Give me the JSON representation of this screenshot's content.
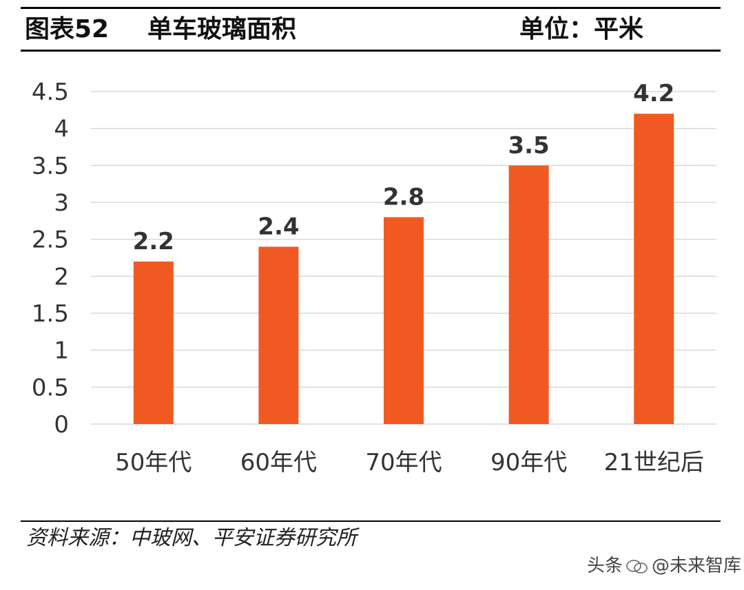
{
  "header": {
    "figure_number": "图表52",
    "title": "单车玻璃面积",
    "unit": "单位：平米"
  },
  "source": "资料来源：中玻网、平安证券研究所",
  "watermark": {
    "left_text": "头条",
    "right_text": "@未来智库",
    "icon": "wechat-icon"
  },
  "colors": {
    "bar": "#f05a22",
    "grid": "#d9d9d9",
    "rule": "#000000"
  },
  "chart_data": {
    "type": "bar",
    "categories": [
      "50年代",
      "60年代",
      "70年代",
      "90年代",
      "21世纪后"
    ],
    "values": [
      2.2,
      2.4,
      2.8,
      3.5,
      4.2
    ],
    "data_labels": [
      "2.2",
      "2.4",
      "2.8",
      "3.5",
      "4.2"
    ],
    "yticks": [
      0,
      0.5,
      1,
      1.5,
      2,
      2.5,
      3,
      3.5,
      4,
      4.5
    ],
    "ytick_labels": [
      "0",
      "0.5",
      "1",
      "1.5",
      "2",
      "2.5",
      "3",
      "3.5",
      "4",
      "4.5"
    ],
    "ylim": [
      0,
      4.5
    ],
    "grid": true,
    "legend": "none"
  }
}
